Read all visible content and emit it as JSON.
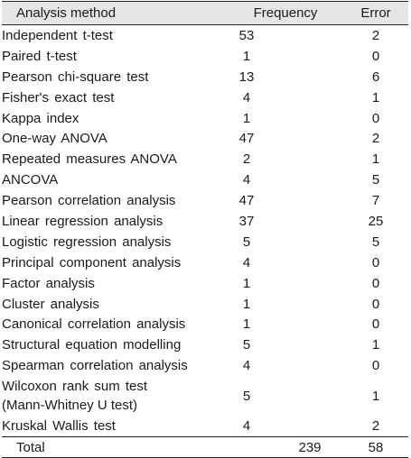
{
  "table": {
    "headers": {
      "method": "Analysis method",
      "frequency": "Frequency",
      "error": "Error"
    },
    "rows": [
      {
        "method": "Independent t-test",
        "method_line2": "",
        "frequency": "53",
        "error": "2"
      },
      {
        "method": "Paired t-test",
        "method_line2": "",
        "frequency": "1",
        "error": "0"
      },
      {
        "method": "Pearson chi-square test",
        "method_line2": "",
        "frequency": "13",
        "error": "6"
      },
      {
        "method": "Fisher's exact test",
        "method_line2": "",
        "frequency": "4",
        "error": "1"
      },
      {
        "method": "Kappa index",
        "method_line2": "",
        "frequency": "1",
        "error": "0"
      },
      {
        "method": "One-way ANOVA",
        "method_line2": "",
        "frequency": "47",
        "error": "2"
      },
      {
        "method": "Repeated measures ANOVA",
        "method_line2": "",
        "frequency": "2",
        "error": "1"
      },
      {
        "method": "ANCOVA",
        "method_line2": "",
        "frequency": "4",
        "error": "5"
      },
      {
        "method": "Pearson correlation analysis",
        "method_line2": "",
        "frequency": "47",
        "error": "7"
      },
      {
        "method": "Linear regression analysis",
        "method_line2": "",
        "frequency": "37",
        "error": "25"
      },
      {
        "method": "Logistic regression analysis",
        "method_line2": "",
        "frequency": "5",
        "error": "5"
      },
      {
        "method": "Principal component analysis",
        "method_line2": "",
        "frequency": "4",
        "error": "0"
      },
      {
        "method": "Factor analysis",
        "method_line2": "",
        "frequency": "1",
        "error": "0"
      },
      {
        "method": "Cluster analysis",
        "method_line2": "",
        "frequency": "1",
        "error": "0"
      },
      {
        "method": "Canonical correlation analysis",
        "method_line2": "",
        "frequency": "1",
        "error": "0"
      },
      {
        "method": "Structural equation modelling",
        "method_line2": "",
        "frequency": "5",
        "error": "1"
      },
      {
        "method": "Spearman correlation analysis",
        "method_line2": "",
        "frequency": "4",
        "error": "0"
      },
      {
        "method": "Wilcoxon rank sum test",
        "method_line2": "(Mann-Whitney U test)",
        "frequency": "5",
        "error": "1"
      },
      {
        "method": "Kruskal Wallis test",
        "method_line2": "",
        "frequency": "4",
        "error": "2"
      }
    ],
    "total": {
      "label": "Total",
      "frequency": "239",
      "error": "58"
    }
  },
  "colors": {
    "header_background": "#e6e6e6",
    "rule": "#222222",
    "text": "#1a1a1a"
  }
}
